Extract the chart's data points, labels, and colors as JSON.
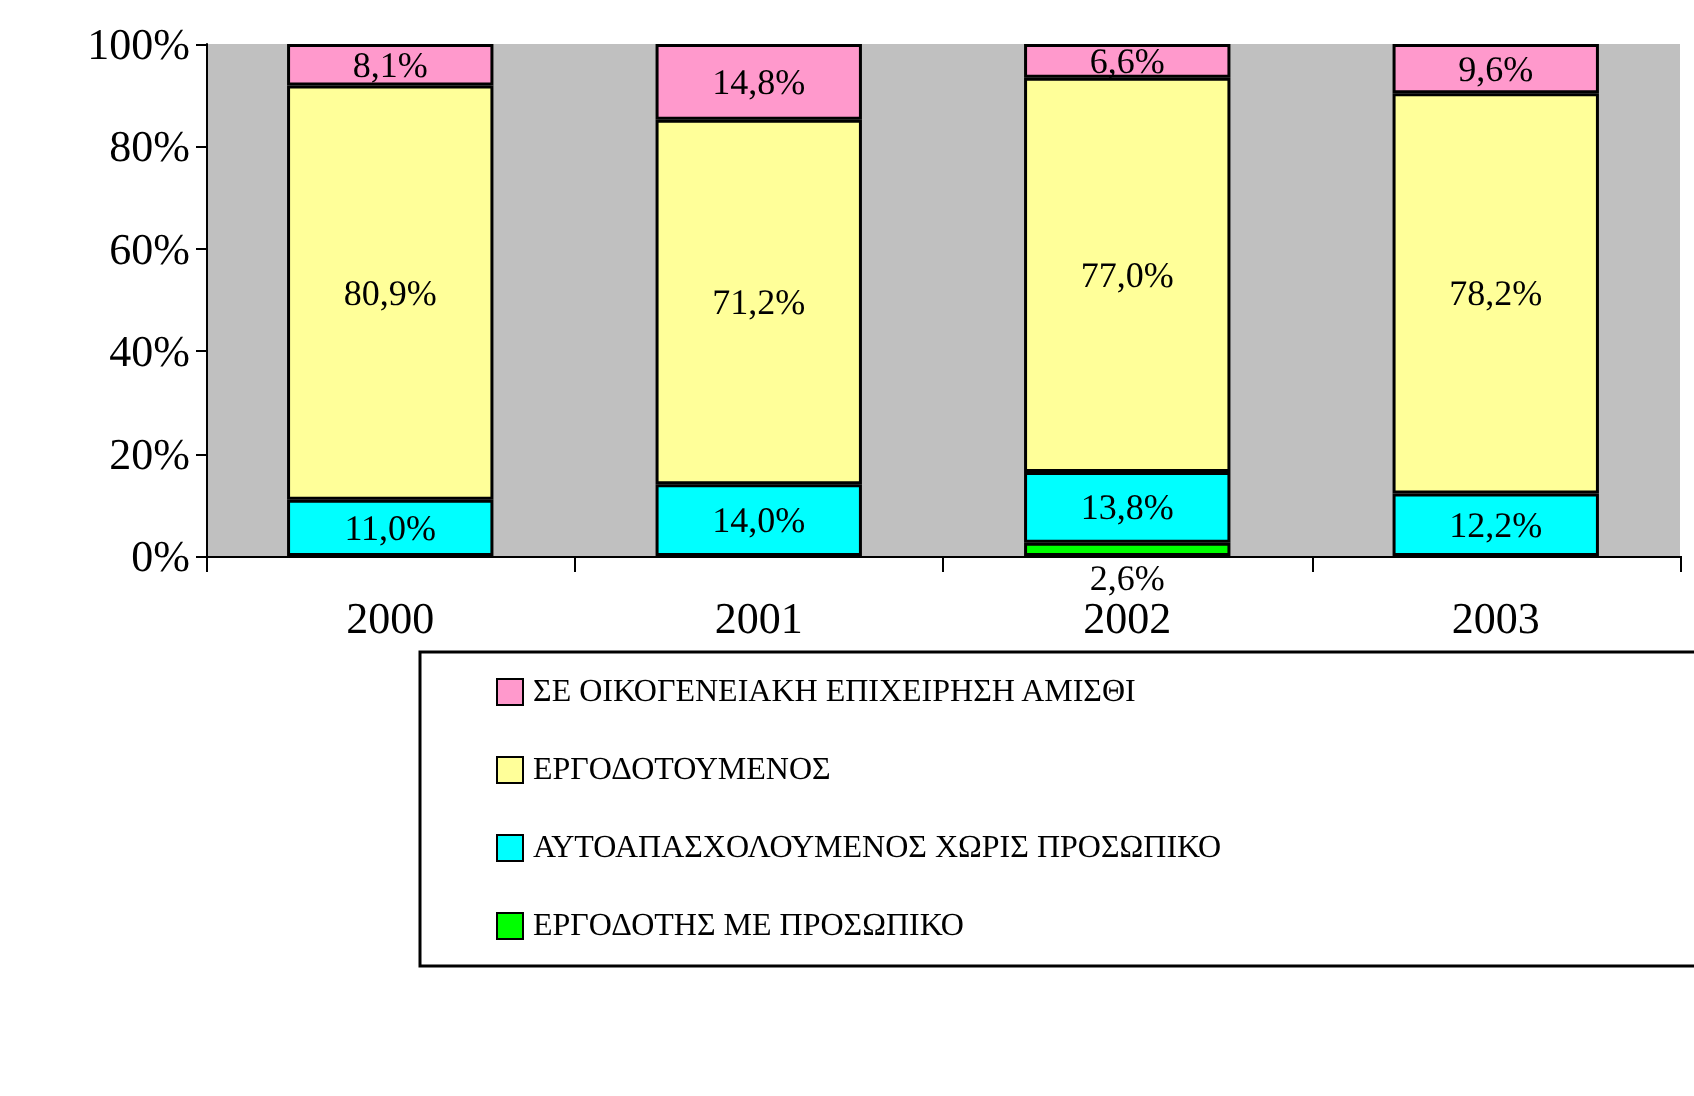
{
  "chart_data": {
    "type": "bar",
    "stacked": true,
    "categories": [
      "2000",
      "2001",
      "2002",
      "2003"
    ],
    "series": [
      {
        "name": "ΕΡΓΟΔΟΤΗΣ ΜΕ ΠΡΟΣΩΠΙΚΟ",
        "color": "#00ff00",
        "values": [
          null,
          null,
          2.6,
          null
        ],
        "value_labels": [
          null,
          null,
          "2,6%",
          null
        ]
      },
      {
        "name": "ΑΥΤΟΑΠΑΣΧΟΛΟΥΜΕΝΟΣ ΧΩΡΙΣ ΠΡΟΣΩΠΙΚΟ",
        "color": "#00ffff",
        "values": [
          11.0,
          14.0,
          13.8,
          12.2
        ],
        "value_labels": [
          "11,0%",
          "14,0%",
          "13,8%",
          "12,2%"
        ]
      },
      {
        "name": "ΕΡΓΟΔΟΤΟΥΜΕΝΟΣ",
        "color": "#ffff99",
        "values": [
          80.9,
          71.2,
          77.0,
          78.2
        ],
        "value_labels": [
          "80,9%",
          "71,2%",
          "77,0%",
          "78,2%"
        ]
      },
      {
        "name": "ΣΕ ΟΙΚΟΓΕΝΕΙΑΚΗ ΕΠΙΧΕΙΡΗΣΗ ΑΜΙΣΘΙ",
        "color": "#ff99cc",
        "values": [
          8.1,
          14.8,
          6.6,
          9.6
        ],
        "value_labels": [
          "8,1%",
          "14,8%",
          "6,6%",
          "9,6%"
        ]
      }
    ],
    "ylim": [
      0,
      100
    ],
    "yticks": [
      {
        "value": 0,
        "label": "0%"
      },
      {
        "value": 20,
        "label": "20%"
      },
      {
        "value": 40,
        "label": "40%"
      },
      {
        "value": 60,
        "label": "60%"
      },
      {
        "value": 80,
        "label": "80%"
      },
      {
        "value": 100,
        "label": "100%"
      }
    ],
    "grid": false,
    "legend": "bottom"
  }
}
